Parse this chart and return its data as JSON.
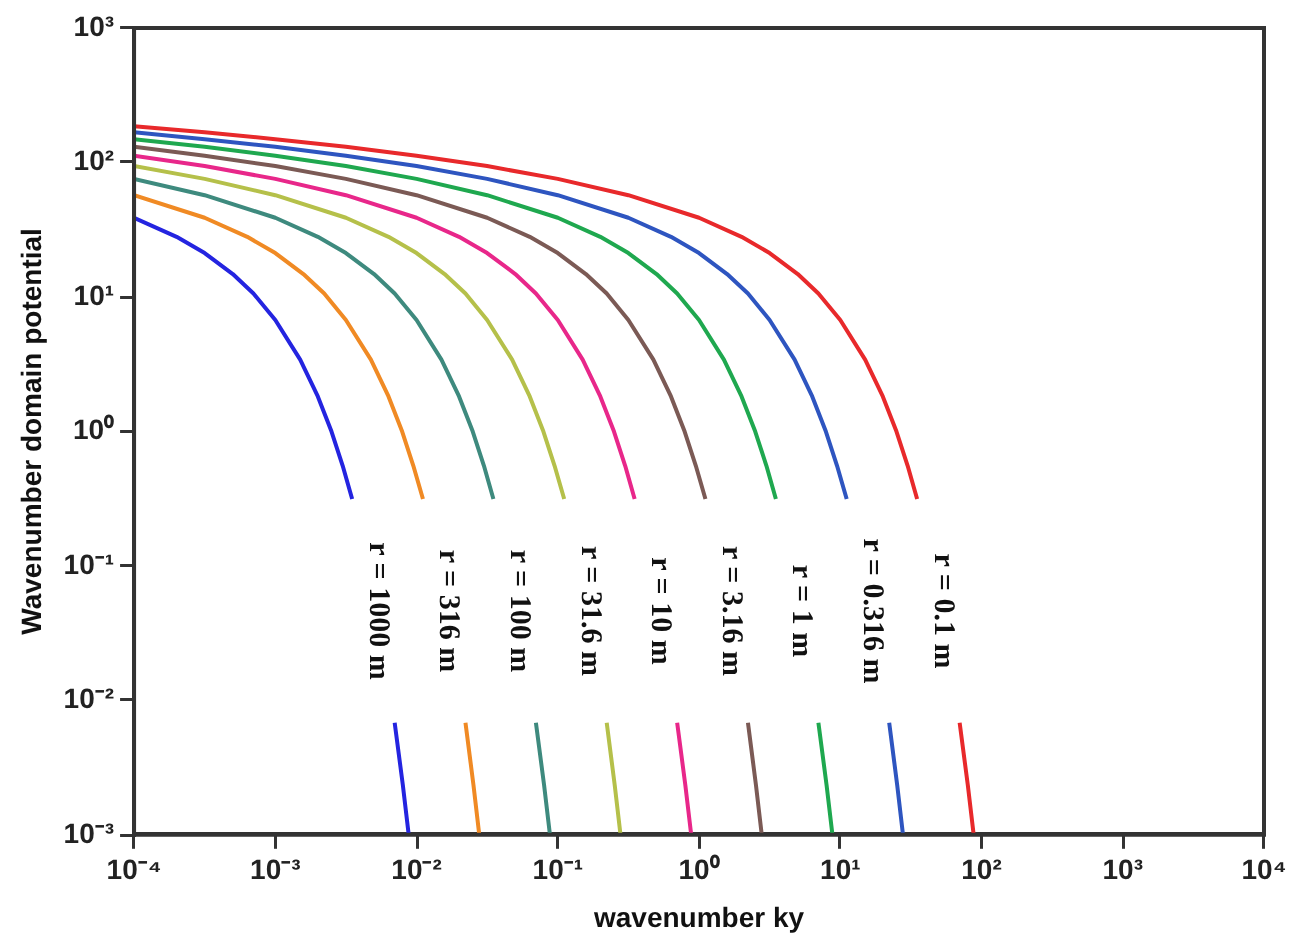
{
  "chart_data": {
    "type": "line",
    "xlabel": "wavenumber ky",
    "ylabel": "Wavenumber domain potential",
    "log": "xy",
    "grid": false,
    "legend": false,
    "marker": "none",
    "line_style": "solid",
    "xlim": [
      0.0001,
      10000
    ],
    "ylim": [
      0.001,
      1000
    ],
    "xticks": [
      {
        "value": 0.0001,
        "label": "10⁻⁴"
      },
      {
        "value": 0.001,
        "label": "10⁻³"
      },
      {
        "value": 0.01,
        "label": "10⁻²"
      },
      {
        "value": 0.1,
        "label": "10⁻¹"
      },
      {
        "value": 1,
        "label": "10⁰"
      },
      {
        "value": 10,
        "label": "10¹"
      },
      {
        "value": 100,
        "label": "10²"
      },
      {
        "value": 1000,
        "label": "10³"
      },
      {
        "value": 10000,
        "label": "10⁴"
      }
    ],
    "yticks": [
      {
        "value": 0.001,
        "label": "10⁻³"
      },
      {
        "value": 0.01,
        "label": "10⁻²"
      },
      {
        "value": 0.1,
        "label": "10⁻¹"
      },
      {
        "value": 1,
        "label": "10⁰"
      },
      {
        "value": 10,
        "label": "10¹"
      },
      {
        "value": 100,
        "label": "10²"
      },
      {
        "value": 1000,
        "label": "10³"
      }
    ],
    "series": [
      {
        "name": "r = 0.1 m",
        "color": "#e8292b",
        "x": [
          0.0001,
          0.000316,
          0.001,
          0.00316,
          0.01,
          0.0316,
          0.1,
          0.316,
          1,
          2,
          3.16,
          5,
          7,
          10,
          15,
          20,
          25,
          30,
          35,
          50,
          70,
          80,
          88
        ],
        "values": [
          186,
          168,
          149,
          131,
          112,
          94,
          75.5,
          57.1,
          38.8,
          28,
          21.2,
          14.8,
          10.6,
          6.74,
          3.42,
          1.82,
          0.997,
          0.555,
          0.314,
          null,
          0.0068,
          0.00234,
          0.001
        ]
      },
      {
        "name": "r = 0.316 m",
        "color": "#2e55c0",
        "x": [
          0.0001,
          0.000316,
          0.001,
          0.00316,
          0.01,
          0.0316,
          0.1,
          0.316,
          0.633,
          1,
          1.58,
          2.22,
          3.16,
          4.75,
          6.33,
          7.91,
          9.49,
          11.1,
          15.8,
          22.2,
          25.3,
          27.8
        ],
        "values": [
          168,
          149,
          131,
          112,
          94,
          75.5,
          57.1,
          38.8,
          28,
          21.2,
          14.8,
          10.6,
          6.74,
          3.42,
          1.82,
          0.997,
          0.555,
          0.314,
          null,
          0.0068,
          0.00234,
          0.001
        ]
      },
      {
        "name": "r = 1 m",
        "color": "#1fa84f",
        "x": [
          0.0001,
          0.000316,
          0.001,
          0.00316,
          0.01,
          0.0316,
          0.1,
          0.2,
          0.316,
          0.5,
          0.7,
          1,
          1.5,
          2,
          2.5,
          3,
          3.5,
          5,
          7,
          8,
          8.8
        ],
        "values": [
          149,
          131,
          112,
          94,
          75.5,
          57.1,
          38.8,
          28,
          21.2,
          14.8,
          10.6,
          6.74,
          3.42,
          1.82,
          0.997,
          0.555,
          0.314,
          null,
          0.0068,
          0.00234,
          0.001
        ]
      },
      {
        "name": "r = 3.16 m",
        "color": "#7b5a55",
        "x": [
          0.0001,
          0.000316,
          0.001,
          0.00316,
          0.01,
          0.0316,
          0.0633,
          0.1,
          0.158,
          0.222,
          0.316,
          0.475,
          0.633,
          0.791,
          0.949,
          1.11,
          1.58,
          2.22,
          2.53,
          2.78
        ],
        "values": [
          131,
          112,
          94,
          75.5,
          57.1,
          38.8,
          28,
          21.2,
          14.8,
          10.6,
          6.74,
          3.42,
          1.82,
          0.997,
          0.555,
          0.314,
          null,
          0.0068,
          0.00234,
          0.001
        ]
      },
      {
        "name": "r = 10 m",
        "color": "#e8278a",
        "x": [
          0.0001,
          0.000316,
          0.001,
          0.00316,
          0.01,
          0.02,
          0.0316,
          0.05,
          0.07,
          0.1,
          0.15,
          0.2,
          0.25,
          0.3,
          0.35,
          0.5,
          0.7,
          0.8,
          0.88
        ],
        "values": [
          112,
          94,
          75.5,
          57.1,
          38.8,
          28,
          21.2,
          14.8,
          10.6,
          6.74,
          3.42,
          1.82,
          0.997,
          0.555,
          0.314,
          null,
          0.0068,
          0.00234,
          0.001
        ]
      },
      {
        "name": "r = 31.6 m",
        "color": "#b5c04a",
        "x": [
          0.0001,
          0.000316,
          0.001,
          0.00316,
          0.00633,
          0.01,
          0.0158,
          0.0222,
          0.0316,
          0.0475,
          0.0633,
          0.0791,
          0.0949,
          0.111,
          0.158,
          0.222,
          0.253,
          0.278
        ],
        "values": [
          94,
          75.5,
          57.1,
          38.8,
          28,
          21.2,
          14.8,
          10.6,
          6.74,
          3.42,
          1.82,
          0.997,
          0.555,
          0.314,
          null,
          0.0068,
          0.00234,
          0.001
        ]
      },
      {
        "name": "r = 100 m",
        "color": "#3e8a7e",
        "x": [
          0.0001,
          0.000316,
          0.001,
          0.002,
          0.00316,
          0.005,
          0.007,
          0.01,
          0.015,
          0.02,
          0.025,
          0.03,
          0.035,
          0.05,
          0.07,
          0.08,
          0.088
        ],
        "values": [
          75.5,
          57.1,
          38.8,
          28,
          21.2,
          14.8,
          10.6,
          6.74,
          3.42,
          1.82,
          0.997,
          0.555,
          0.314,
          null,
          0.0068,
          0.00234,
          0.001
        ]
      },
      {
        "name": "r = 316 m",
        "color": "#f08a24",
        "x": [
          0.0001,
          0.000316,
          0.000633,
          0.001,
          0.00158,
          0.00222,
          0.00316,
          0.00475,
          0.00633,
          0.00791,
          0.00949,
          0.0111,
          0.0158,
          0.0222,
          0.0253,
          0.0278
        ],
        "values": [
          57.1,
          38.8,
          28,
          21.2,
          14.8,
          10.6,
          6.74,
          3.42,
          1.82,
          0.997,
          0.555,
          0.314,
          null,
          0.0068,
          0.00234,
          0.001
        ]
      },
      {
        "name": "r = 1000 m",
        "color": "#2424e0",
        "x": [
          0.0001,
          0.0002,
          0.000316,
          0.0005,
          0.0007,
          0.001,
          0.0015,
          0.002,
          0.0025,
          0.003,
          0.0035,
          0.005,
          0.007,
          0.008,
          0.0088
        ],
        "values": [
          38.8,
          28,
          21.2,
          14.8,
          10.6,
          6.74,
          3.42,
          1.82,
          0.997,
          0.555,
          0.314,
          null,
          0.0068,
          0.00234,
          0.001
        ]
      }
    ]
  }
}
